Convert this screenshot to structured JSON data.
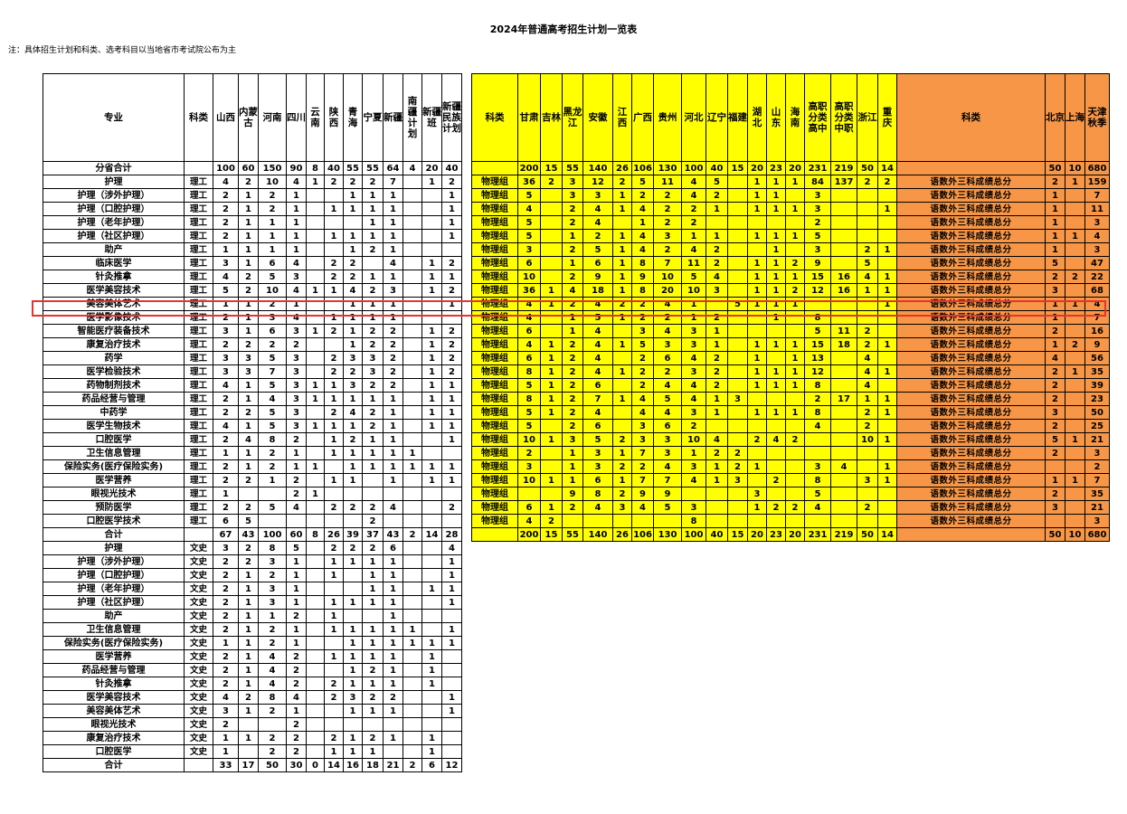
{
  "title": "2024年普通高考招生计划一览表",
  "note": "注：具体招生计划和科类、选考科目以当地省市考试院公布为主",
  "left_table": {
    "headers": [
      "专业",
      "科类",
      "山西",
      "内蒙古",
      "河南",
      "四川",
      "云南",
      "陕西",
      "青海",
      "宁夏",
      "新疆",
      "南疆计划",
      "新疆班",
      "新疆民族计划"
    ],
    "rows": [
      [
        "分省合计",
        "",
        "100",
        "60",
        "150",
        "90",
        "8",
        "40",
        "55",
        "55",
        "64",
        "4",
        "20",
        "40"
      ],
      [
        "护理",
        "理工",
        "4",
        "2",
        "10",
        "4",
        "1",
        "2",
        "2",
        "2",
        "7",
        "",
        "1",
        "2"
      ],
      [
        "护理（涉外护理）",
        "理工",
        "2",
        "1",
        "2",
        "1",
        "",
        "",
        "1",
        "1",
        "1",
        "",
        "",
        "1"
      ],
      [
        "护理（口腔护理）",
        "理工",
        "2",
        "1",
        "2",
        "1",
        "",
        "1",
        "1",
        "1",
        "1",
        "",
        "",
        "1"
      ],
      [
        "护理（老年护理）",
        "理工",
        "2",
        "1",
        "1",
        "1",
        "",
        "",
        "",
        "1",
        "1",
        "",
        "",
        "1"
      ],
      [
        "护理（社区护理）",
        "理工",
        "2",
        "1",
        "1",
        "1",
        "",
        "1",
        "1",
        "1",
        "1",
        "",
        "",
        "1"
      ],
      [
        "助产",
        "理工",
        "1",
        "1",
        "1",
        "1",
        "",
        "",
        "1",
        "2",
        "1",
        "",
        "",
        ""
      ],
      [
        "临床医学",
        "理工",
        "3",
        "1",
        "6",
        "4",
        "",
        "2",
        "2",
        "",
        "4",
        "",
        "1",
        "2"
      ],
      [
        "针灸推拿",
        "理工",
        "4",
        "2",
        "5",
        "3",
        "",
        "2",
        "2",
        "1",
        "1",
        "",
        "1",
        "1"
      ],
      [
        "医学美容技术",
        "理工",
        "5",
        "2",
        "10",
        "4",
        "1",
        "1",
        "4",
        "2",
        "3",
        "",
        "1",
        "2"
      ],
      [
        "美容美体艺术",
        "理工",
        "1",
        "1",
        "2",
        "1",
        "",
        "",
        "1",
        "1",
        "1",
        "",
        "",
        "1"
      ],
      [
        "医学影像技术",
        "理工",
        "2",
        "1",
        "3",
        "4",
        "",
        "1",
        "1",
        "1",
        "1",
        "",
        "",
        ""
      ],
      [
        "智能医疗装备技术",
        "理工",
        "3",
        "1",
        "6",
        "3",
        "1",
        "2",
        "1",
        "2",
        "2",
        "",
        "1",
        "2"
      ],
      [
        "康复治疗技术",
        "理工",
        "2",
        "2",
        "2",
        "2",
        "",
        "",
        "1",
        "2",
        "2",
        "",
        "1",
        "2"
      ],
      [
        "药学",
        "理工",
        "3",
        "3",
        "5",
        "3",
        "",
        "2",
        "3",
        "3",
        "2",
        "",
        "1",
        "2"
      ],
      [
        "医学检验技术",
        "理工",
        "3",
        "3",
        "7",
        "3",
        "",
        "2",
        "2",
        "3",
        "2",
        "",
        "1",
        "2"
      ],
      [
        "药物制剂技术",
        "理工",
        "4",
        "1",
        "5",
        "3",
        "1",
        "1",
        "3",
        "2",
        "2",
        "",
        "1",
        "1"
      ],
      [
        "药品经营与管理",
        "理工",
        "2",
        "1",
        "4",
        "3",
        "1",
        "1",
        "1",
        "1",
        "1",
        "",
        "1",
        "1"
      ],
      [
        "中药学",
        "理工",
        "2",
        "2",
        "5",
        "3",
        "",
        "2",
        "4",
        "2",
        "1",
        "",
        "1",
        "1"
      ],
      [
        "医学生物技术",
        "理工",
        "4",
        "1",
        "5",
        "3",
        "1",
        "1",
        "1",
        "2",
        "1",
        "",
        "1",
        "1"
      ],
      [
        "口腔医学",
        "理工",
        "2",
        "4",
        "8",
        "2",
        "",
        "1",
        "2",
        "1",
        "1",
        "",
        "",
        "1"
      ],
      [
        "卫生信息管理",
        "理工",
        "1",
        "1",
        "2",
        "1",
        "",
        "1",
        "1",
        "1",
        "1",
        "1",
        "",
        ""
      ],
      [
        "保险实务(医疗保险实务)",
        "理工",
        "2",
        "1",
        "2",
        "1",
        "1",
        "",
        "1",
        "1",
        "1",
        "1",
        "1",
        "1"
      ],
      [
        "医学营养",
        "理工",
        "2",
        "2",
        "1",
        "2",
        "",
        "1",
        "1",
        "",
        "1",
        "",
        "1",
        "1"
      ],
      [
        "眼视光技术",
        "理工",
        "1",
        "",
        "",
        "2",
        "1",
        "",
        "",
        "",
        "",
        "",
        "",
        ""
      ],
      [
        "预防医学",
        "理工",
        "2",
        "2",
        "5",
        "4",
        "",
        "2",
        "2",
        "2",
        "4",
        "",
        "",
        "2"
      ],
      [
        "口腔医学技术",
        "理工",
        "6",
        "5",
        "",
        "",
        "",
        "",
        "",
        "2",
        "",
        "",
        "",
        ""
      ],
      [
        "合计",
        "",
        "67",
        "43",
        "100",
        "60",
        "8",
        "26",
        "39",
        "37",
        "43",
        "2",
        "14",
        "28"
      ],
      [
        "护理",
        "文史",
        "3",
        "2",
        "8",
        "5",
        "",
        "2",
        "2",
        "2",
        "6",
        "",
        "",
        "4"
      ],
      [
        "护理（涉外护理）",
        "文史",
        "2",
        "2",
        "3",
        "1",
        "",
        "1",
        "1",
        "1",
        "1",
        "",
        "",
        "1"
      ],
      [
        "护理（口腔护理）",
        "文史",
        "2",
        "1",
        "2",
        "1",
        "",
        "1",
        "",
        "1",
        "1",
        "",
        "",
        "1"
      ],
      [
        "护理（老年护理）",
        "文史",
        "2",
        "1",
        "3",
        "1",
        "",
        "",
        "",
        "1",
        "1",
        "",
        "1",
        "1"
      ],
      [
        "护理（社区护理）",
        "文史",
        "2",
        "1",
        "3",
        "1",
        "",
        "1",
        "1",
        "1",
        "1",
        "",
        "",
        "1"
      ],
      [
        "助产",
        "文史",
        "2",
        "1",
        "1",
        "2",
        "",
        "1",
        "",
        "",
        "1",
        "",
        "",
        ""
      ],
      [
        "卫生信息管理",
        "文史",
        "2",
        "1",
        "2",
        "1",
        "",
        "1",
        "1",
        "1",
        "1",
        "1",
        "",
        "1"
      ],
      [
        "保险实务(医疗保险实务)",
        "文史",
        "1",
        "1",
        "2",
        "1",
        "",
        "",
        "1",
        "1",
        "1",
        "1",
        "1",
        "1"
      ],
      [
        "医学营养",
        "文史",
        "2",
        "1",
        "4",
        "2",
        "",
        "1",
        "1",
        "1",
        "1",
        "",
        "1",
        ""
      ],
      [
        "药品经营与管理",
        "文史",
        "2",
        "1",
        "4",
        "2",
        "",
        "",
        "1",
        "2",
        "1",
        "",
        "1",
        ""
      ],
      [
        "针灸推拿",
        "文史",
        "2",
        "1",
        "4",
        "2",
        "",
        "2",
        "1",
        "1",
        "1",
        "",
        "1",
        ""
      ],
      [
        "医学美容技术",
        "文史",
        "4",
        "2",
        "8",
        "4",
        "",
        "2",
        "3",
        "2",
        "2",
        "",
        "",
        "1"
      ],
      [
        "美容美体艺术",
        "文史",
        "3",
        "1",
        "2",
        "1",
        "",
        "",
        "1",
        "1",
        "1",
        "",
        "",
        "1"
      ],
      [
        "眼视光技术",
        "文史",
        "2",
        "",
        "",
        "2",
        "",
        "",
        "",
        "",
        "",
        "",
        "",
        ""
      ],
      [
        "康复治疗技术",
        "文史",
        "1",
        "1",
        "2",
        "2",
        "",
        "2",
        "1",
        "2",
        "1",
        "",
        "1",
        ""
      ],
      [
        "口腔医学",
        "文史",
        "1",
        "",
        "2",
        "2",
        "",
        "1",
        "1",
        "1",
        "",
        "",
        "1",
        ""
      ],
      [
        "合计",
        "",
        "33",
        "17",
        "50",
        "30",
        "0",
        "14",
        "16",
        "18",
        "21",
        "2",
        "6",
        "12"
      ]
    ]
  },
  "mid_table": {
    "headers": [
      "科类",
      "甘肃",
      "吉林",
      "黑龙江",
      "安徽",
      "江西",
      "广西",
      "贵州",
      "河北",
      "辽宁",
      "福建",
      "湖北",
      "山东",
      "海南",
      "高职分类高中",
      "高职分类中职",
      "浙江",
      "重庆"
    ],
    "rows": [
      [
        "",
        "200",
        "15",
        "55",
        "140",
        "26",
        "106",
        "130",
        "100",
        "40",
        "15",
        "20",
        "23",
        "20",
        "231",
        "219",
        "50",
        "14"
      ],
      [
        "物理组",
        "36",
        "2",
        "3",
        "12",
        "2",
        "5",
        "11",
        "4",
        "5",
        "",
        "1",
        "1",
        "1",
        "84",
        "137",
        "2",
        "2"
      ],
      [
        "物理组",
        "5",
        "",
        "3",
        "3",
        "1",
        "2",
        "2",
        "4",
        "2",
        "",
        "1",
        "1",
        "",
        "3",
        "",
        "",
        ""
      ],
      [
        "物理组",
        "4",
        "",
        "2",
        "4",
        "1",
        "4",
        "2",
        "2",
        "1",
        "",
        "1",
        "1",
        "1",
        "3",
        "",
        "",
        "1"
      ],
      [
        "物理组",
        "5",
        "",
        "2",
        "4",
        "",
        "1",
        "2",
        "2",
        "",
        "",
        "",
        "",
        "",
        "2",
        "",
        "",
        ""
      ],
      [
        "物理组",
        "5",
        "",
        "1",
        "2",
        "1",
        "4",
        "3",
        "1",
        "1",
        "",
        "1",
        "1",
        "1",
        "5",
        "",
        "",
        ""
      ],
      [
        "物理组",
        "3",
        "",
        "2",
        "5",
        "1",
        "4",
        "2",
        "4",
        "2",
        "",
        "",
        "1",
        "",
        "3",
        "",
        "2",
        "1"
      ],
      [
        "物理组",
        "6",
        "",
        "1",
        "6",
        "1",
        "8",
        "7",
        "11",
        "2",
        "",
        "1",
        "1",
        "2",
        "9",
        "",
        "5",
        ""
      ],
      [
        "物理组",
        "10",
        "",
        "2",
        "9",
        "1",
        "9",
        "10",
        "5",
        "4",
        "",
        "1",
        "1",
        "1",
        "15",
        "16",
        "4",
        "1"
      ],
      [
        "物理组",
        "36",
        "1",
        "4",
        "18",
        "1",
        "8",
        "20",
        "10",
        "3",
        "",
        "1",
        "1",
        "2",
        "12",
        "16",
        "1",
        "1"
      ],
      [
        "物理组",
        "4",
        "1",
        "2",
        "4",
        "2",
        "2",
        "4",
        "1",
        "",
        "5",
        "1",
        "1",
        "1",
        "",
        "",
        "",
        "1"
      ],
      [
        "物理组",
        "4",
        "",
        "1",
        "5",
        "1",
        "2",
        "2",
        "1",
        "2",
        "",
        "",
        "1",
        "",
        "8",
        "",
        "",
        ""
      ],
      [
        "物理组",
        "6",
        "",
        "1",
        "4",
        "",
        "3",
        "4",
        "3",
        "1",
        "",
        "",
        "",
        "",
        "5",
        "11",
        "2",
        ""
      ],
      [
        "物理组",
        "4",
        "1",
        "2",
        "4",
        "1",
        "5",
        "3",
        "3",
        "1",
        "",
        "1",
        "1",
        "1",
        "15",
        "18",
        "2",
        "1"
      ],
      [
        "物理组",
        "6",
        "1",
        "2",
        "4",
        "",
        "2",
        "6",
        "4",
        "2",
        "",
        "1",
        "",
        "1",
        "13",
        "",
        "4",
        ""
      ],
      [
        "物理组",
        "8",
        "1",
        "2",
        "4",
        "1",
        "2",
        "2",
        "3",
        "2",
        "",
        "1",
        "1",
        "1",
        "12",
        "",
        "4",
        "1"
      ],
      [
        "物理组",
        "5",
        "1",
        "2",
        "6",
        "",
        "2",
        "4",
        "4",
        "2",
        "",
        "1",
        "1",
        "1",
        "8",
        "",
        "4",
        ""
      ],
      [
        "物理组",
        "8",
        "1",
        "2",
        "7",
        "1",
        "4",
        "5",
        "4",
        "1",
        "3",
        "",
        "",
        "",
        "2",
        "17",
        "1",
        "1"
      ],
      [
        "物理组",
        "5",
        "1",
        "2",
        "4",
        "",
        "4",
        "4",
        "3",
        "1",
        "",
        "1",
        "1",
        "1",
        "8",
        "",
        "2",
        "1"
      ],
      [
        "物理组",
        "5",
        "",
        "2",
        "6",
        "",
        "3",
        "6",
        "2",
        "",
        "",
        "",
        "",
        "",
        "4",
        "",
        "2",
        ""
      ],
      [
        "物理组",
        "10",
        "1",
        "3",
        "5",
        "2",
        "3",
        "3",
        "10",
        "4",
        "",
        "2",
        "4",
        "2",
        "",
        "",
        "10",
        "1"
      ],
      [
        "物理组",
        "2",
        "",
        "1",
        "3",
        "1",
        "7",
        "3",
        "1",
        "2",
        "2",
        "",
        "",
        "",
        "",
        "",
        "",
        ""
      ],
      [
        "物理组",
        "3",
        "",
        "1",
        "3",
        "2",
        "2",
        "4",
        "3",
        "1",
        "2",
        "1",
        "",
        "",
        "3",
        "4",
        "",
        "1"
      ],
      [
        "物理组",
        "10",
        "1",
        "1",
        "6",
        "1",
        "7",
        "7",
        "4",
        "1",
        "3",
        "",
        "2",
        "",
        "8",
        "",
        "3",
        "1"
      ],
      [
        "物理组",
        "",
        "",
        "9",
        "8",
        "2",
        "9",
        "9",
        "",
        "",
        "",
        "3",
        "",
        "",
        "5",
        "",
        "",
        ""
      ],
      [
        "物理组",
        "6",
        "1",
        "2",
        "4",
        "3",
        "4",
        "5",
        "3",
        "",
        "",
        "1",
        "2",
        "2",
        "4",
        "",
        "2",
        ""
      ],
      [
        "物理组",
        "4",
        "2",
        "",
        "",
        "",
        "",
        "",
        "8",
        "",
        "",
        "",
        "",
        "",
        "",
        "",
        "",
        ""
      ],
      [
        "",
        "200",
        "15",
        "55",
        "140",
        "26",
        "106",
        "130",
        "100",
        "40",
        "15",
        "20",
        "23",
        "20",
        "231",
        "219",
        "50",
        "14"
      ]
    ]
  },
  "right_table": {
    "headers": [
      "科类",
      "北京",
      "上海",
      "天津秋季"
    ],
    "subject_text": "语数外三科成绩总分",
    "rows": [
      [
        "",
        "50",
        "10",
        "680"
      ],
      [
        "语数外三科成绩总分",
        "2",
        "1",
        "159"
      ],
      [
        "语数外三科成绩总分",
        "1",
        "",
        "7"
      ],
      [
        "语数外三科成绩总分",
        "1",
        "",
        "11"
      ],
      [
        "语数外三科成绩总分",
        "1",
        "",
        "3"
      ],
      [
        "语数外三科成绩总分",
        "1",
        "1",
        "4"
      ],
      [
        "语数外三科成绩总分",
        "1",
        "",
        "3"
      ],
      [
        "语数外三科成绩总分",
        "5",
        "",
        "47"
      ],
      [
        "语数外三科成绩总分",
        "2",
        "2",
        "22"
      ],
      [
        "语数外三科成绩总分",
        "3",
        "",
        "68"
      ],
      [
        "语数外三科成绩总分",
        "1",
        "1",
        "4"
      ],
      [
        "语数外三科成绩总分",
        "1",
        "",
        "7"
      ],
      [
        "语数外三科成绩总分",
        "2",
        "",
        "16"
      ],
      [
        "语数外三科成绩总分",
        "1",
        "2",
        "9"
      ],
      [
        "语数外三科成绩总分",
        "4",
        "",
        "56"
      ],
      [
        "语数外三科成绩总分",
        "2",
        "1",
        "35"
      ],
      [
        "语数外三科成绩总分",
        "2",
        "",
        "39"
      ],
      [
        "语数外三科成绩总分",
        "2",
        "",
        "23"
      ],
      [
        "语数外三科成绩总分",
        "3",
        "",
        "50"
      ],
      [
        "语数外三科成绩总分",
        "2",
        "",
        "25"
      ],
      [
        "语数外三科成绩总分",
        "5",
        "1",
        "21"
      ],
      [
        "语数外三科成绩总分",
        "2",
        "",
        "3"
      ],
      [
        "语数外三科成绩总分",
        "",
        "",
        "2"
      ],
      [
        "语数外三科成绩总分",
        "1",
        "1",
        "7"
      ],
      [
        "语数外三科成绩总分",
        "2",
        "",
        "35"
      ],
      [
        "语数外三科成绩总分",
        "3",
        "",
        "21"
      ],
      [
        "语数外三科成绩总分",
        "",
        "",
        "3"
      ],
      [
        "",
        "50",
        "10",
        "680"
      ]
    ]
  },
  "highlight": {
    "row": "美容美体艺术",
    "color": "#e8322f"
  }
}
